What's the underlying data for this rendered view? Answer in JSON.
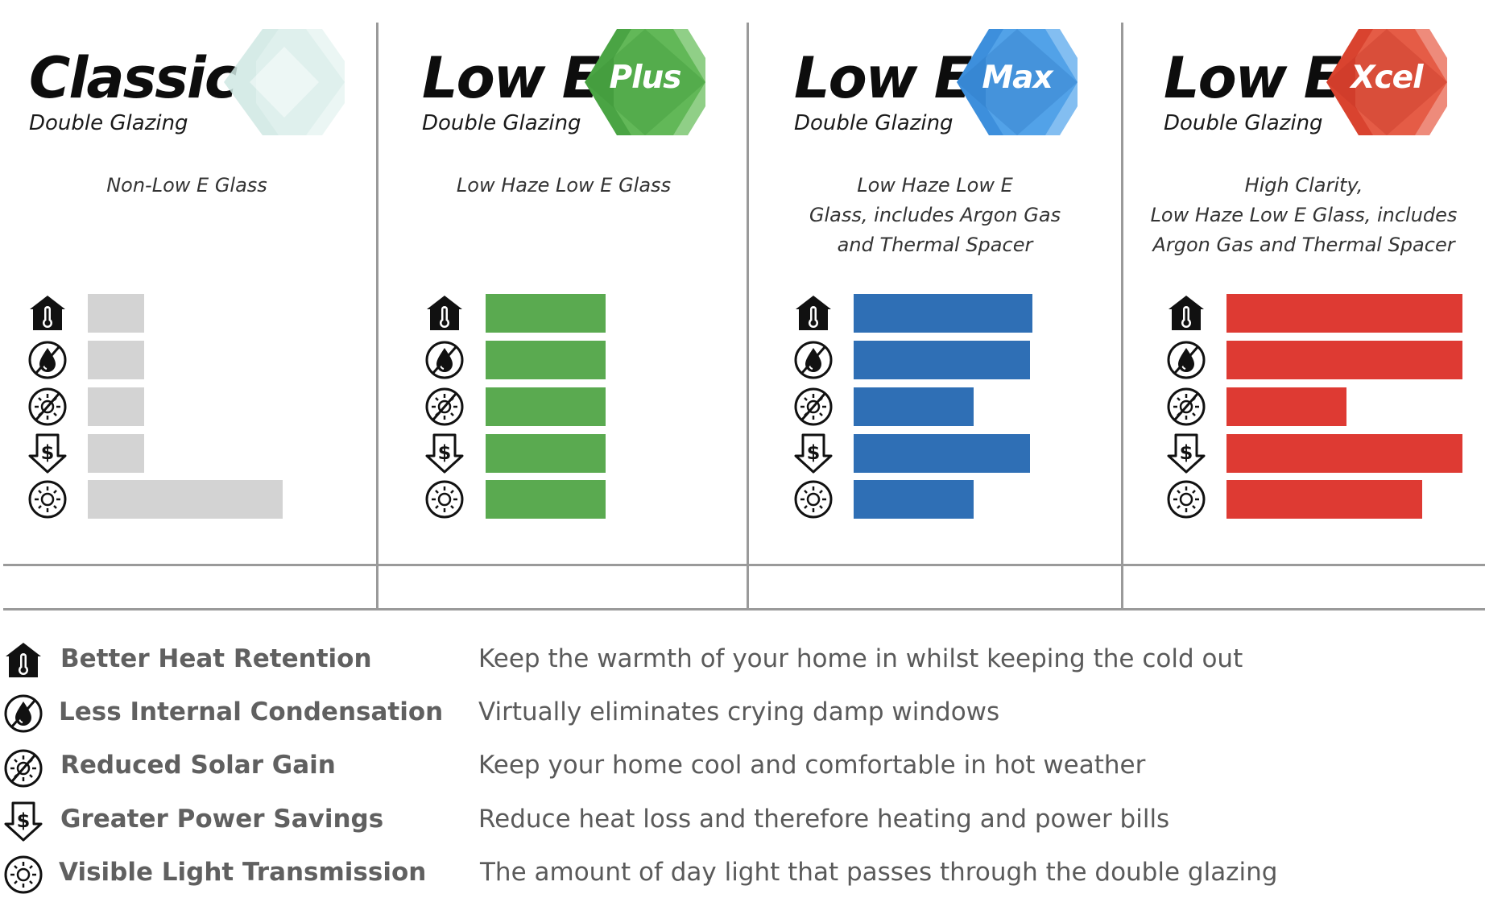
{
  "colors": {
    "classic": "#d3d3d3",
    "plus": "#5aaa50",
    "max": "#2f6fb5",
    "xcel": "#de3a33",
    "divider": "#9a9a9a"
  },
  "products": [
    {
      "brand": "Classic",
      "subtitle": "Double Glazing",
      "badge": "",
      "gem_color": "#cfe7e3",
      "description": [
        "Non-Low E Glass"
      ]
    },
    {
      "brand": "Low E",
      "subtitle": "Double Glazing",
      "badge": "Plus",
      "gem_color": "#4aa444",
      "description": [
        "Low Haze  Low E Glass"
      ]
    },
    {
      "brand": "Low E",
      "subtitle": "Double Glazing",
      "badge": "Max",
      "gem_color": "#3d8fdc",
      "description": [
        "Low Haze Low E",
        "Glass, includes Argon Gas",
        "and Thermal Spacer"
      ]
    },
    {
      "brand": "Low E",
      "subtitle": "Double Glazing",
      "badge": "Xcel",
      "gem_color": "#d9432f",
      "description": [
        "High Clarity,",
        "Low Haze Low E Glass, includes",
        "Argon Gas and Thermal Spacer"
      ]
    }
  ],
  "chart_data": {
    "type": "bar",
    "orientation": "horizontal",
    "categories": [
      "Better Heat Retention",
      "Less Internal Condensation",
      "Reduced Solar Gain",
      "Greater Power Savings",
      "Visible Light Transmission"
    ],
    "scale_max": 100,
    "series": [
      {
        "name": "Classic",
        "color": "#d3d3d3",
        "values": [
          24,
          24,
          24,
          24,
          83
        ]
      },
      {
        "name": "Low E Plus",
        "color": "#5aaa50",
        "values": [
          51,
          51,
          51,
          51,
          51
        ]
      },
      {
        "name": "Low E Max",
        "color": "#2f6fb5",
        "values": [
          76,
          75,
          51,
          75,
          51
        ]
      },
      {
        "name": "Low E Xcel",
        "color": "#de3a33",
        "values": [
          100,
          100,
          51,
          100,
          83
        ]
      }
    ]
  },
  "legend": [
    {
      "icon": "house-thermometer-icon",
      "label": "Better Heat Retention",
      "description": "Keep the warmth of your home in whilst keeping the cold out"
    },
    {
      "icon": "no-condensation-drop-icon",
      "label": "Less Internal Condensation",
      "description": "Virtually eliminates crying damp windows"
    },
    {
      "icon": "no-sun-icon",
      "label": "Reduced Solar Gain",
      "description": "Keep your home cool and comfortable in hot weather"
    },
    {
      "icon": "dollar-down-arrow-icon",
      "label": "Greater Power Savings",
      "description": "Reduce heat loss and therefore heating and power bills"
    },
    {
      "icon": "sun-circle-icon",
      "label": "Visible Light Transmission",
      "description": "The amount of day light that passes through the double glazing"
    }
  ]
}
